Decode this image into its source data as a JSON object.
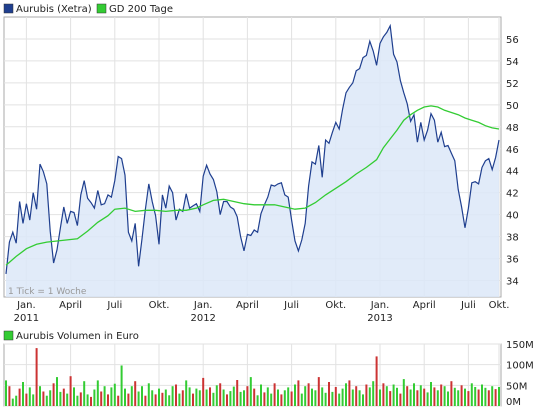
{
  "chart_data": [
    {
      "type": "line",
      "legend": [
        {
          "label": "Aurubis (Xetra)",
          "color": "#1f3f8f"
        },
        {
          "label": "GD 200 Tage",
          "color": "#33cc33"
        }
      ],
      "legend_position": "top-left",
      "note": "1 Tick = 1 Woche",
      "ylim": [
        32.5,
        58
      ],
      "y_ticks": [
        34,
        36,
        38,
        40,
        42,
        44,
        46,
        48,
        50,
        52,
        54,
        56
      ],
      "y_axis_side": "right",
      "grid": true,
      "x_range_weeks": [
        0,
        145
      ],
      "x_ticks": [
        {
          "label": "Jan.",
          "week": 6
        },
        {
          "label": "April",
          "week": 19
        },
        {
          "label": "Juli",
          "week": 32
        },
        {
          "label": "Okt.",
          "week": 45
        },
        {
          "label": "Jan.",
          "week": 58
        },
        {
          "label": "April",
          "week": 71
        },
        {
          "label": "Juli",
          "week": 84
        },
        {
          "label": "Okt.",
          "week": 97
        },
        {
          "label": "Jan.",
          "week": 110
        },
        {
          "label": "April",
          "week": 123
        },
        {
          "label": "Juli",
          "week": 136
        },
        {
          "label": "Okt.",
          "week": 145
        }
      ],
      "year_labels": [
        {
          "label": "2011",
          "week": 6
        },
        {
          "label": "2012",
          "week": 58
        },
        {
          "label": "2013",
          "week": 110
        }
      ],
      "series": [
        {
          "name": "Aurubis (Xetra)",
          "color": "#1f3f8f",
          "fill": "#dce8f8",
          "points": [
            [
              0,
              34.6
            ],
            [
              1,
              37.5
            ],
            [
              2,
              38.4
            ],
            [
              3,
              37.4
            ],
            [
              4,
              41.2
            ],
            [
              5,
              39.2
            ],
            [
              6,
              41.0
            ],
            [
              7,
              39.5
            ],
            [
              8,
              42.0
            ],
            [
              9,
              40.5
            ],
            [
              10,
              44.6
            ],
            [
              11,
              43.9
            ],
            [
              12,
              42.8
            ],
            [
              13,
              38.5
            ],
            [
              14,
              35.6
            ],
            [
              15,
              36.8
            ],
            [
              16,
              38.8
            ],
            [
              17,
              40.7
            ],
            [
              18,
              39.2
            ],
            [
              19,
              40.3
            ],
            [
              20,
              40.2
            ],
            [
              21,
              39.0
            ],
            [
              22,
              41.8
            ],
            [
              23,
              43.1
            ],
            [
              24,
              41.5
            ],
            [
              25,
              41.1
            ],
            [
              26,
              40.6
            ],
            [
              27,
              42.2
            ],
            [
              28,
              40.9
            ],
            [
              29,
              41.0
            ],
            [
              30,
              41.8
            ],
            [
              31,
              41.6
            ],
            [
              32,
              43.1
            ],
            [
              33,
              45.3
            ],
            [
              34,
              45.1
            ],
            [
              35,
              43.6
            ],
            [
              36,
              38.4
            ],
            [
              37,
              37.6
            ],
            [
              38,
              39.2
            ],
            [
              39,
              35.3
            ],
            [
              40,
              37.8
            ],
            [
              41,
              40.5
            ],
            [
              42,
              42.8
            ],
            [
              43,
              41.2
            ],
            [
              44,
              39.9
            ],
            [
              45,
              37.3
            ],
            [
              46,
              41.8
            ],
            [
              47,
              40.6
            ],
            [
              48,
              42.6
            ],
            [
              49,
              42.0
            ],
            [
              50,
              39.5
            ],
            [
              51,
              40.5
            ],
            [
              52,
              40.3
            ],
            [
              53,
              41.9
            ],
            [
              54,
              40.6
            ],
            [
              55,
              40.8
            ],
            [
              56,
              41.0
            ],
            [
              57,
              40.3
            ],
            [
              58,
              43.5
            ],
            [
              59,
              44.5
            ],
            [
              60,
              43.7
            ],
            [
              61,
              43.2
            ],
            [
              62,
              42.1
            ],
            [
              63,
              40.0
            ],
            [
              64,
              41.2
            ],
            [
              65,
              41.2
            ],
            [
              66,
              40.7
            ],
            [
              67,
              40.5
            ],
            [
              68,
              39.8
            ],
            [
              69,
              38.0
            ],
            [
              70,
              36.7
            ],
            [
              71,
              38.2
            ],
            [
              72,
              38.1
            ],
            [
              73,
              38.6
            ],
            [
              74,
              38.4
            ],
            [
              75,
              40.1
            ],
            [
              76,
              40.9
            ],
            [
              77,
              41.6
            ],
            [
              78,
              42.7
            ],
            [
              79,
              42.6
            ],
            [
              80,
              42.8
            ],
            [
              81,
              42.9
            ],
            [
              82,
              41.8
            ],
            [
              83,
              41.6
            ],
            [
              84,
              39.5
            ],
            [
              85,
              37.6
            ],
            [
              86,
              36.7
            ],
            [
              87,
              37.7
            ],
            [
              88,
              39.2
            ],
            [
              89,
              42.6
            ],
            [
              90,
              44.8
            ],
            [
              91,
              44.6
            ],
            [
              92,
              46.3
            ],
            [
              93,
              43.4
            ],
            [
              94,
              46.8
            ],
            [
              95,
              46.5
            ],
            [
              96,
              47.5
            ],
            [
              97,
              48.4
            ],
            [
              98,
              47.8
            ],
            [
              99,
              49.6
            ],
            [
              100,
              51.1
            ],
            [
              101,
              51.6
            ],
            [
              102,
              52.0
            ],
            [
              103,
              53.1
            ],
            [
              104,
              53.3
            ],
            [
              105,
              54.3
            ],
            [
              106,
              54.5
            ],
            [
              107,
              55.8
            ],
            [
              108,
              54.9
            ],
            [
              109,
              53.6
            ],
            [
              110,
              55.6
            ],
            [
              111,
              56.2
            ],
            [
              112,
              56.6
            ],
            [
              113,
              57.2
            ],
            [
              114,
              54.6
            ],
            [
              115,
              53.9
            ],
            [
              116,
              52.2
            ],
            [
              117,
              51.1
            ],
            [
              118,
              50.1
            ],
            [
              119,
              48.5
            ],
            [
              120,
              49.1
            ],
            [
              121,
              46.6
            ],
            [
              122,
              48.4
            ],
            [
              123,
              46.8
            ],
            [
              124,
              47.7
            ],
            [
              125,
              49.2
            ],
            [
              126,
              48.6
            ],
            [
              127,
              46.6
            ],
            [
              128,
              47.5
            ],
            [
              129,
              46.2
            ],
            [
              130,
              46.3
            ],
            [
              131,
              45.6
            ],
            [
              132,
              44.9
            ],
            [
              133,
              42.3
            ],
            [
              134,
              40.7
            ],
            [
              135,
              38.8
            ],
            [
              136,
              40.6
            ],
            [
              137,
              42.9
            ],
            [
              138,
              43.0
            ],
            [
              139,
              42.8
            ],
            [
              140,
              44.3
            ],
            [
              141,
              44.9
            ],
            [
              142,
              45.1
            ],
            [
              143,
              44.1
            ],
            [
              144,
              45.2
            ],
            [
              145,
              46.8
            ]
          ]
        },
        {
          "name": "GD 200 Tage",
          "color": "#33cc33",
          "points": [
            [
              0,
              35.4
            ],
            [
              3,
              36.2
            ],
            [
              6,
              36.9
            ],
            [
              9,
              37.3
            ],
            [
              12,
              37.5
            ],
            [
              15,
              37.6
            ],
            [
              18,
              37.7
            ],
            [
              21,
              37.8
            ],
            [
              24,
              38.5
            ],
            [
              27,
              39.3
            ],
            [
              30,
              39.9
            ],
            [
              32,
              40.5
            ],
            [
              35,
              40.6
            ],
            [
              38,
              40.3
            ],
            [
              41,
              40.4
            ],
            [
              44,
              40.4
            ],
            [
              47,
              40.3
            ],
            [
              50,
              40.4
            ],
            [
              53,
              40.4
            ],
            [
              56,
              40.6
            ],
            [
              58,
              40.9
            ],
            [
              61,
              41.3
            ],
            [
              64,
              41.4
            ],
            [
              67,
              41.2
            ],
            [
              70,
              41.0
            ],
            [
              73,
              40.9
            ],
            [
              76,
              40.9
            ],
            [
              79,
              40.9
            ],
            [
              82,
              40.7
            ],
            [
              85,
              40.5
            ],
            [
              88,
              40.6
            ],
            [
              91,
              41.1
            ],
            [
              94,
              41.8
            ],
            [
              97,
              42.4
            ],
            [
              100,
              43.0
            ],
            [
              103,
              43.7
            ],
            [
              106,
              44.3
            ],
            [
              109,
              45.0
            ],
            [
              111,
              46.1
            ],
            [
              113,
              46.9
            ],
            [
              115,
              47.7
            ],
            [
              117,
              48.6
            ],
            [
              119,
              49.1
            ],
            [
              121,
              49.5
            ],
            [
              123,
              49.8
            ],
            [
              125,
              49.9
            ],
            [
              127,
              49.8
            ],
            [
              129,
              49.5
            ],
            [
              131,
              49.3
            ],
            [
              133,
              49.1
            ],
            [
              135,
              48.8
            ],
            [
              137,
              48.6
            ],
            [
              139,
              48.4
            ],
            [
              141,
              48.1
            ],
            [
              143,
              47.9
            ],
            [
              145,
              47.8
            ]
          ]
        }
      ]
    },
    {
      "type": "bar",
      "legend": [
        {
          "label": "Aurubis Volumen in Euro",
          "color": "#33cc33"
        }
      ],
      "legend_position": "top-left",
      "ylim": [
        0,
        150
      ],
      "y_ticks": [
        0,
        50,
        100,
        150
      ],
      "y_tick_labels": [
        "0M",
        "50M",
        "100M",
        "150M"
      ],
      "y_axis_side": "right",
      "grid": true,
      "unit": "Mio. Euro",
      "color_up": "#33cc33",
      "color_down": "#cc3333",
      "values": [
        62,
        48,
        18,
        25,
        42,
        58,
        30,
        45,
        28,
        140,
        48,
        35,
        25,
        38,
        55,
        70,
        34,
        42,
        30,
        72,
        45,
        25,
        33,
        60,
        28,
        22,
        40,
        62,
        35,
        48,
        28,
        45,
        54,
        25,
        98,
        42,
        30,
        48,
        60,
        35,
        48,
        25,
        55,
        38,
        28,
        42,
        32,
        40,
        26,
        48,
        52,
        30,
        38,
        62,
        45,
        30,
        42,
        38,
        68,
        40,
        45,
        32,
        50,
        55,
        40,
        28,
        36,
        47,
        63,
        34,
        38,
        48,
        70,
        42,
        26,
        52,
        33,
        45,
        30,
        55,
        40,
        28,
        38,
        45,
        35,
        52,
        62,
        30,
        48,
        55,
        42,
        38,
        70,
        45,
        32,
        58,
        34,
        46,
        30,
        42,
        55,
        62,
        40,
        48,
        38,
        28,
        52,
        45,
        60,
        120,
        40,
        55,
        48,
        36,
        52,
        44,
        30,
        65,
        48,
        40,
        55,
        38,
        50,
        42,
        33,
        58,
        45,
        38,
        52,
        48,
        35,
        60,
        44,
        38,
        50,
        42,
        36,
        55,
        46,
        40,
        52,
        44,
        38,
        48,
        41,
        46
      ],
      "down_flags": [
        0,
        1,
        0,
        0,
        1,
        0,
        1,
        0,
        0,
        1,
        0,
        1,
        0,
        0,
        1,
        0,
        0,
        1,
        0,
        1,
        0,
        0,
        1,
        0,
        0,
        1,
        0,
        0,
        1,
        0,
        1,
        0,
        0,
        1,
        0,
        0,
        1,
        0,
        1,
        0,
        0,
        1,
        0,
        0,
        1,
        0,
        1,
        0,
        0,
        0,
        1,
        0,
        1,
        0,
        0,
        1,
        0,
        0,
        1,
        0,
        1,
        0,
        0,
        1,
        0,
        1,
        0,
        0,
        1,
        0,
        0,
        1,
        0,
        1,
        0,
        0,
        1,
        0,
        0,
        1,
        0,
        1,
        0,
        0,
        1,
        0,
        1,
        0,
        0,
        1,
        0,
        0,
        1,
        0,
        0,
        1,
        0,
        1,
        0,
        0,
        0,
        1,
        0,
        1,
        0,
        0,
        1,
        0,
        0,
        1,
        0,
        1,
        0,
        1,
        0,
        0,
        1,
        0,
        1,
        0,
        0,
        1,
        0,
        1,
        0,
        0,
        1,
        0,
        1,
        0,
        0,
        1,
        0,
        0,
        1,
        0,
        1,
        0,
        0,
        1,
        0,
        0,
        1,
        0,
        1,
        0
      ]
    }
  ]
}
